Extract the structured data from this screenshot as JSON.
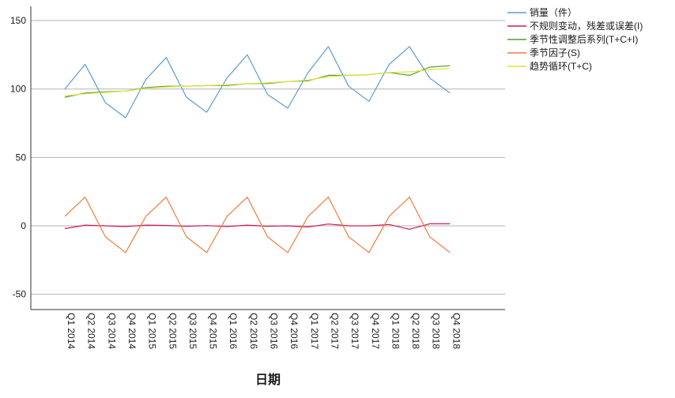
{
  "chart_data": {
    "type": "line",
    "xlabel": "日期",
    "ylabel": "",
    "ylim": [
      -60,
      160
    ],
    "yticks": [
      -50,
      0,
      50,
      100,
      150
    ],
    "grid": true,
    "legend_position": "top-right",
    "categories": [
      "Q1 2014",
      "Q2 2014",
      "Q3 2014",
      "Q4 2014",
      "Q1 2015",
      "Q2 2015",
      "Q3 2015",
      "Q4 2015",
      "Q1 2016",
      "Q2 2016",
      "Q3 2016",
      "Q4 2016",
      "Q1 2017",
      "Q2 2017",
      "Q3 2017",
      "Q4 2017",
      "Q1 2018",
      "Q2 2018",
      "Q3 2018",
      "Q4 2018"
    ],
    "series": [
      {
        "name": "销量（件）",
        "color": "#5b9bd5",
        "values": [
          100,
          118,
          90,
          79,
          107,
          123,
          94,
          83,
          108,
          125,
          96,
          86,
          112,
          131,
          102,
          91,
          118,
          131,
          108,
          97
        ]
      },
      {
        "name": "不规则变动，残差或误差(I)",
        "color": "#d6194a",
        "values": [
          -2,
          0.5,
          0,
          -0.5,
          0.5,
          0.3,
          -0.3,
          0.2,
          -0.5,
          0.5,
          -0.3,
          0,
          -0.8,
          1.3,
          0,
          0,
          1,
          -2.5,
          1.5,
          1.5
        ]
      },
      {
        "name": "季节性调整后系列(T+C+I)",
        "color": "#4aa02c",
        "values": [
          94,
          97,
          98,
          98.5,
          101,
          102,
          102,
          102.5,
          102.5,
          104,
          104,
          105.5,
          106,
          110,
          110,
          110.5,
          112,
          110,
          116,
          117
        ]
      },
      {
        "name": "季节因子(S)",
        "color": "#f27a3f",
        "values": [
          7,
          21,
          -8,
          -19.5,
          7,
          21,
          -8,
          -19.5,
          7,
          21,
          -8,
          -19.5,
          7,
          21,
          -8,
          -19.5,
          7,
          21,
          -8,
          -19.5
        ]
      },
      {
        "name": "趋势循环(T+C)",
        "color": "#e3e33a",
        "values": [
          95,
          96.5,
          97.5,
          98.5,
          100.5,
          101.5,
          102,
          102.5,
          103,
          104,
          104.5,
          105.5,
          106.5,
          109,
          110,
          110.5,
          112,
          112.5,
          114,
          115
        ]
      }
    ]
  }
}
